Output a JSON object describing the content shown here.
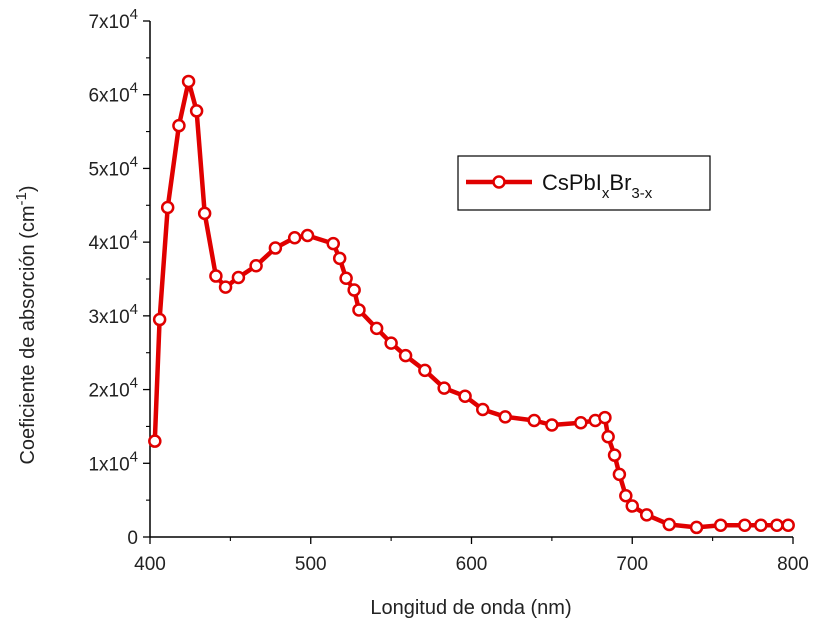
{
  "chart_data": {
    "type": "line",
    "xlabel": "Longitud de onda (nm)",
    "ylabel_main": "Coeficiente de absorción (cm",
    "ylabel_sup": "-1",
    "ylabel_close": ")",
    "xlim": [
      400,
      800
    ],
    "ylim": [
      0,
      70000
    ],
    "x_ticks": [
      400,
      500,
      600,
      700,
      800
    ],
    "x_tick_labels": [
      "400",
      "500",
      "600",
      "700",
      "800"
    ],
    "y_ticks": [
      0,
      10000,
      20000,
      30000,
      40000,
      50000,
      60000,
      70000
    ],
    "y_tick_labels": [
      {
        "mant": "0",
        "exp": ""
      },
      {
        "mant": "1x10",
        "exp": "4"
      },
      {
        "mant": "2x10",
        "exp": "4"
      },
      {
        "mant": "3x10",
        "exp": "4"
      },
      {
        "mant": "4x10",
        "exp": "4"
      },
      {
        "mant": "5x10",
        "exp": "4"
      },
      {
        "mant": "6x10",
        "exp": "4"
      },
      {
        "mant": "7x10",
        "exp": "4"
      }
    ],
    "grid": false,
    "legend_position": "top-right",
    "series": [
      {
        "name_parts": [
          {
            "t": "CsPbI",
            "sub": false
          },
          {
            "t": "x",
            "sub": true
          },
          {
            "t": "Br",
            "sub": false
          },
          {
            "t": "3-x",
            "sub": true
          }
        ],
        "color": "#e00000",
        "marker": "open-circle",
        "x": [
          403,
          406,
          411,
          418,
          424,
          429,
          434,
          441,
          447,
          455,
          466,
          478,
          490,
          498,
          514,
          518,
          522,
          527,
          530,
          541,
          550,
          559,
          571,
          583,
          596,
          607,
          621,
          639,
          650,
          668,
          677,
          683,
          685,
          689,
          692,
          696,
          700,
          709,
          723,
          740,
          755,
          770,
          780,
          790,
          797
        ],
        "y": [
          13000,
          29500,
          44700,
          55800,
          61800,
          57800,
          43900,
          35400,
          33900,
          35200,
          36800,
          39200,
          40600,
          40900,
          39800,
          37800,
          35100,
          33500,
          30800,
          28300,
          26300,
          24600,
          22600,
          20200,
          19100,
          17300,
          16300,
          15800,
          15200,
          15500,
          15800,
          16200,
          13600,
          11100,
          8500,
          5600,
          4200,
          3000,
          1700,
          1300,
          1600,
          1600,
          1600,
          1600,
          1600
        ]
      }
    ]
  }
}
